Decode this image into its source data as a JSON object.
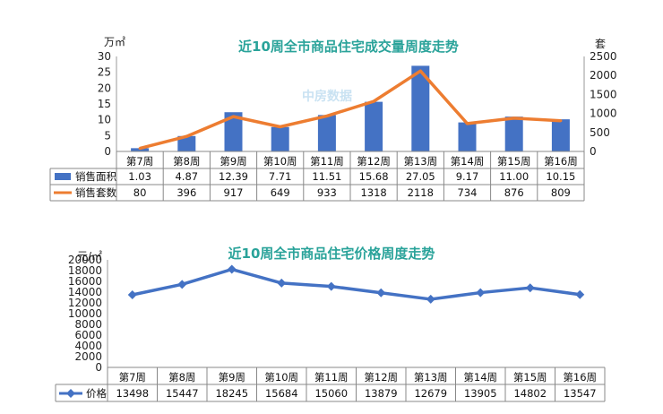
{
  "chart_data": [
    {
      "type": "bar",
      "title": "近10周全市商品住宅成交量周度走势",
      "categories": [
        "第7周",
        "第8周",
        "第9周",
        "第10周",
        "第11周",
        "第12周",
        "第13周",
        "第14周",
        "第15周",
        "第16周"
      ],
      "left_unit": "万㎡",
      "right_unit": "套",
      "ylim_left": [
        0,
        30
      ],
      "yticks_left": [
        "0",
        "5",
        "10",
        "15",
        "20",
        "25",
        "30"
      ],
      "ylim_right": [
        0,
        2500
      ],
      "yticks_right": [
        "0",
        "500",
        "1000",
        "1500",
        "2000",
        "2500"
      ],
      "series": [
        {
          "name": "销售面积",
          "type": "bar",
          "axis": "left",
          "values": [
            1.03,
            4.87,
            12.39,
            7.71,
            11.51,
            15.68,
            27.05,
            9.17,
            11.0,
            10.15
          ],
          "labels": [
            "1.03",
            "4.87",
            "12.39",
            "7.71",
            "11.51",
            "15.68",
            "27.05",
            "9.17",
            "11.00",
            "10.15"
          ],
          "color": "#4472c4"
        },
        {
          "name": "销售套数",
          "type": "line",
          "axis": "right",
          "values": [
            80,
            396,
            917,
            649,
            933,
            1318,
            2118,
            734,
            876,
            809
          ],
          "labels": [
            "80",
            "396",
            "917",
            "649",
            "933",
            "1318",
            "2118",
            "734",
            "876",
            "809"
          ],
          "color": "#ed7d31"
        }
      ],
      "watermark": "中房数据",
      "legend": "data-table"
    },
    {
      "type": "line",
      "title": "近10周全市商品住宅价格周度走势",
      "categories": [
        "第7周",
        "第8周",
        "第9周",
        "第10周",
        "第11周",
        "第12周",
        "第13周",
        "第14周",
        "第15周",
        "第16周"
      ],
      "unit": "元/㎡",
      "ylim": [
        0,
        20000
      ],
      "yticks": [
        "0",
        "2000",
        "4000",
        "6000",
        "8000",
        "10000",
        "12000",
        "14000",
        "16000",
        "18000",
        "20000"
      ],
      "series": [
        {
          "name": "价格",
          "values": [
            13498,
            15447,
            18245,
            15684,
            15060,
            13879,
            12679,
            13905,
            14802,
            13547
          ],
          "labels": [
            "13498",
            "15447",
            "18245",
            "15684",
            "15060",
            "13879",
            "12679",
            "13905",
            "14802",
            "13547"
          ],
          "color": "#4472c4"
        }
      ],
      "legend": "data-table"
    }
  ]
}
